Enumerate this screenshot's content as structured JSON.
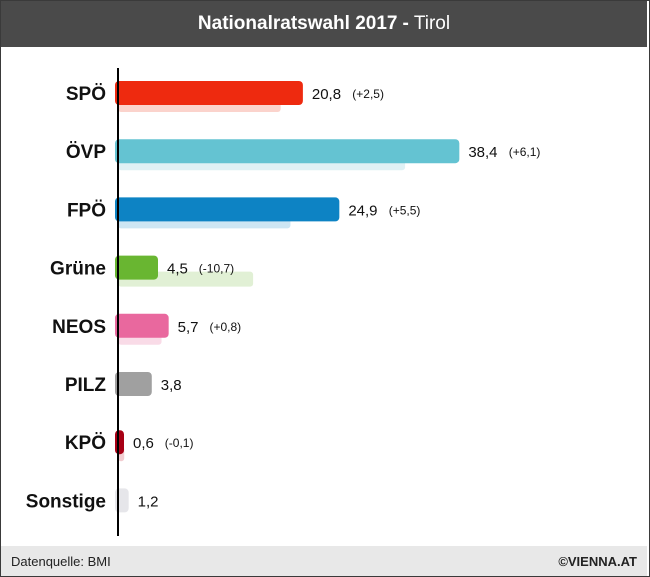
{
  "header": {
    "title": "Nationalratswahl 2017",
    "separator": "-",
    "region": "Tirol"
  },
  "footer": {
    "source": "Datenquelle: BMI",
    "brand": "©VIENNA.AT"
  },
  "chart_data": {
    "type": "bar",
    "orientation": "horizontal",
    "categories": [
      "SPÖ",
      "ÖVP",
      "FPÖ",
      "Grüne",
      "NEOS",
      "PILZ",
      "KPÖ",
      "Sonstige"
    ],
    "values": [
      20.8,
      38.4,
      24.9,
      4.5,
      5.7,
      3.8,
      0.6,
      1.2
    ],
    "value_labels": [
      "20,8",
      "38,4",
      "24,9",
      "4,5",
      "5,7",
      "3,8",
      "0,6",
      "1,2"
    ],
    "change_labels": [
      "(+2,5)",
      "(+6,1)",
      "(+5,5)",
      "(-10,7)",
      "(+0,8)",
      "",
      "(-0,1)",
      ""
    ],
    "previous_values": [
      18.3,
      32.3,
      19.4,
      15.2,
      4.9,
      null,
      0.7,
      null
    ],
    "colors": [
      "#ee2a0f",
      "#64c3d2",
      "#0d83c4",
      "#69b631",
      "#e9689e",
      "#a0a0a0",
      "#a80015",
      "#e6e6ea"
    ],
    "previous_colors": [
      "#fbd3cc",
      "#dff1f5",
      "#cde6f3",
      "#e1f0d5",
      "#f9dbe7",
      null,
      "#f2ccd0",
      null
    ],
    "xlim": [
      0,
      45
    ]
  }
}
